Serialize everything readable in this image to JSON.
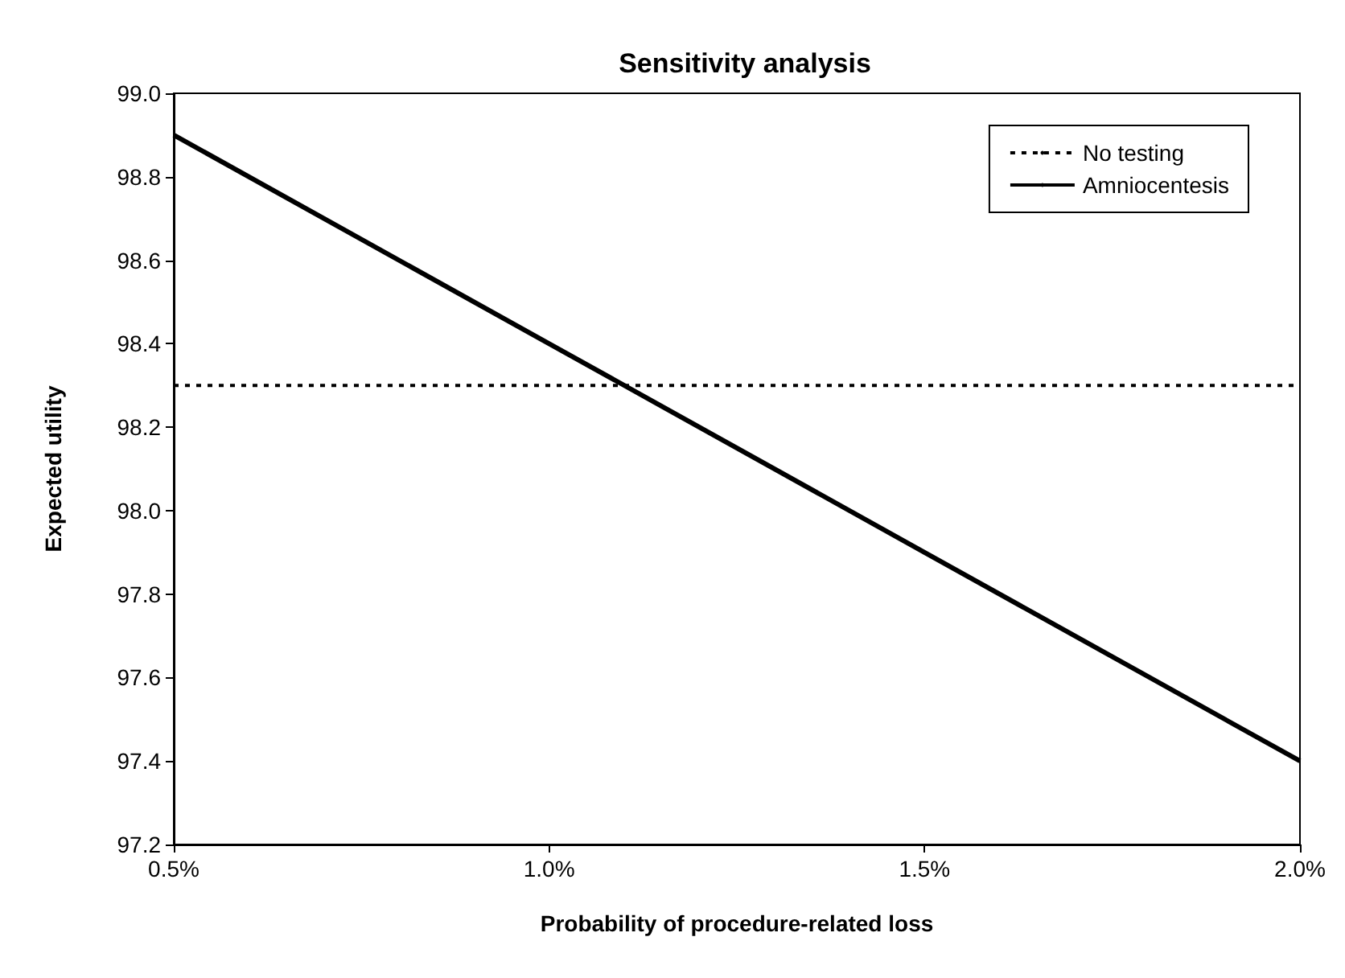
{
  "chart_data": {
    "type": "line",
    "title": "Sensitivity analysis",
    "xlabel": "Probability of procedure-related loss",
    "ylabel": "Expected utility",
    "x": [
      0.5,
      1.0,
      1.5,
      2.0
    ],
    "series": [
      {
        "name": "No testing",
        "color": "#000000",
        "line_style": "dotted",
        "values": [
          98.3,
          98.3,
          98.3,
          98.3
        ]
      },
      {
        "name": "Amniocentesis",
        "color": "#000000",
        "line_style": "solid",
        "values": [
          98.9,
          98.4,
          97.9,
          97.4
        ]
      }
    ],
    "xlim": [
      0.5,
      2.0
    ],
    "xticks": [
      {
        "value": 0.5,
        "label": "0.5%"
      },
      {
        "value": 1.0,
        "label": "1.0%"
      },
      {
        "value": 1.5,
        "label": "1.5%"
      },
      {
        "value": 2.0,
        "label": "2.0%"
      }
    ],
    "ylim": [
      97.2,
      99.0
    ],
    "yticks": [
      {
        "value": 97.2,
        "label": "97.2"
      },
      {
        "value": 97.4,
        "label": "97.4"
      },
      {
        "value": 97.6,
        "label": "97.6"
      },
      {
        "value": 97.8,
        "label": "97.8"
      },
      {
        "value": 98.0,
        "label": "98.0"
      },
      {
        "value": 98.2,
        "label": "98.2"
      },
      {
        "value": 98.4,
        "label": "98.4"
      },
      {
        "value": 98.6,
        "label": "98.6"
      },
      {
        "value": 98.8,
        "label": "98.8"
      },
      {
        "value": 99.0,
        "label": "99.0"
      }
    ],
    "grid": false,
    "legend": "top right",
    "marker": "none"
  }
}
